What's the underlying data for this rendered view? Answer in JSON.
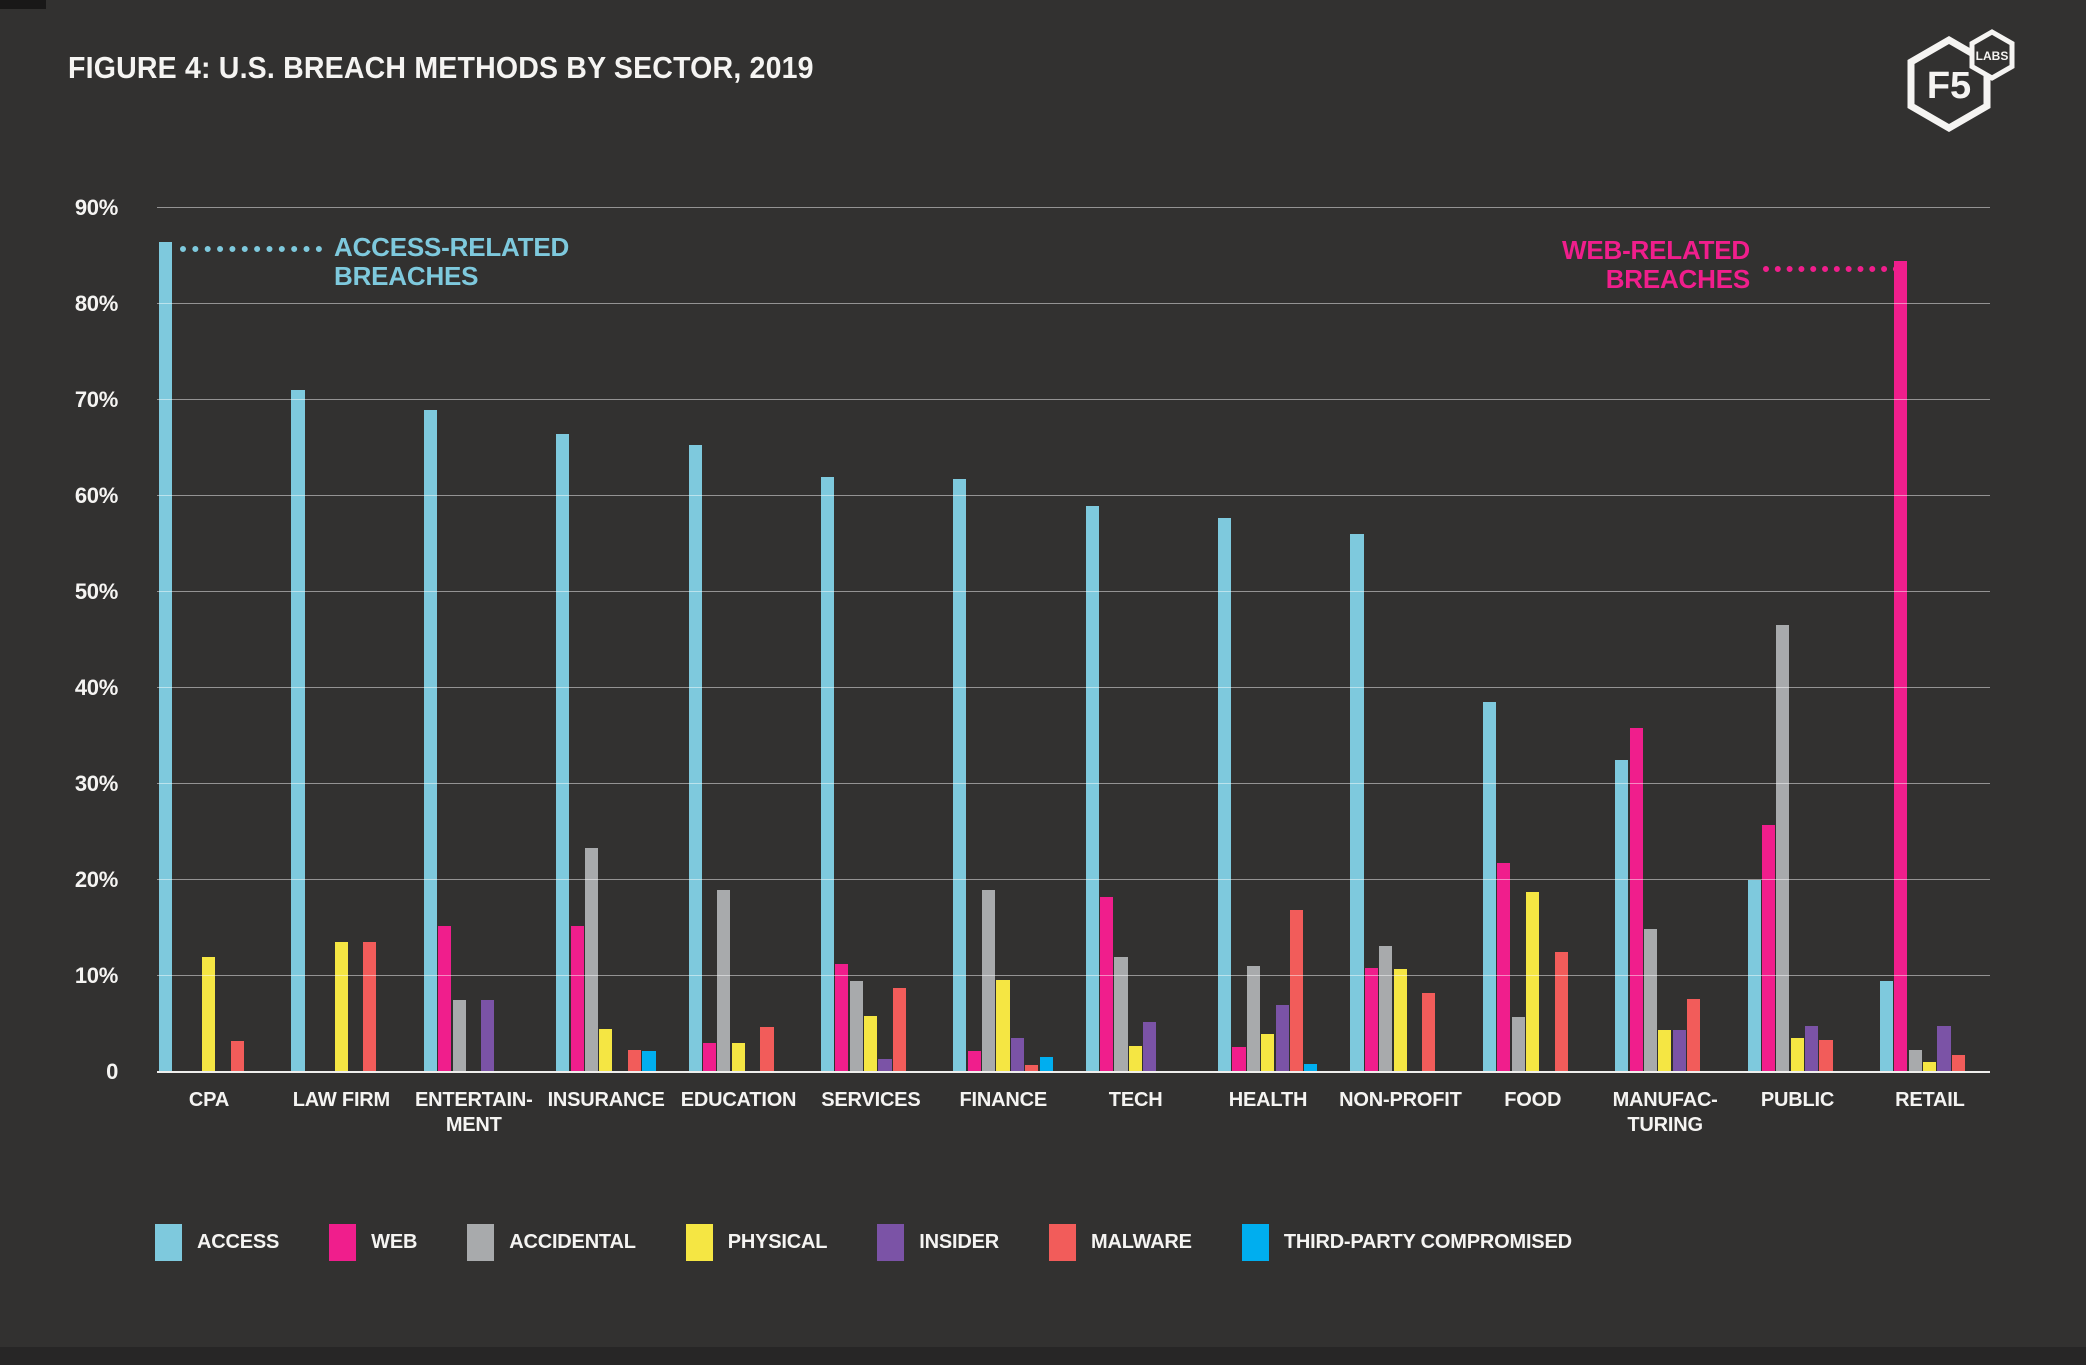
{
  "title": "FIGURE 4: U.S. BREACH METHODS BY SECTOR, 2019",
  "logo": {
    "primary": "F5",
    "labs": "LABS"
  },
  "colors": {
    "background": "#323130",
    "access": "#7ec9dd",
    "web": "#f01e8c",
    "accidental": "#a8aaac",
    "physical": "#f5e643",
    "insider": "#7b53a6",
    "malware": "#f25c5a",
    "third_party": "#00aeef",
    "gridline": "rgba(255,255,255,0.48)",
    "baseline": "#efeeec",
    "text": "#f5f4f2"
  },
  "chart_data": {
    "type": "bar",
    "title": "FIGURE 4: U.S. BREACH METHODS BY SECTOR, 2019",
    "xlabel": "",
    "ylabel": "",
    "ylim": [
      0,
      90
    ],
    "grid": true,
    "legend_position": "bottom",
    "y_ticks": [
      {
        "label": "90%",
        "value": 90
      },
      {
        "label": "80%",
        "value": 80
      },
      {
        "label": "70%",
        "value": 70
      },
      {
        "label": "60%",
        "value": 60
      },
      {
        "label": "50%",
        "value": 50
      },
      {
        "label": "40%",
        "value": 40
      },
      {
        "label": "30%",
        "value": 30
      },
      {
        "label": "20%",
        "value": 20
      },
      {
        "label": "10%",
        "value": 10
      },
      {
        "label": "0",
        "value": 0
      }
    ],
    "categories": [
      {
        "id": "cpa",
        "label": [
          "CPA"
        ]
      },
      {
        "id": "law-firm",
        "label": [
          "LAW FIRM"
        ]
      },
      {
        "id": "entertainment",
        "label": [
          "ENTERTAIN-",
          "MENT"
        ]
      },
      {
        "id": "insurance",
        "label": [
          "INSURANCE"
        ]
      },
      {
        "id": "education",
        "label": [
          "EDUCATION"
        ]
      },
      {
        "id": "services",
        "label": [
          "SERVICES"
        ]
      },
      {
        "id": "finance",
        "label": [
          "FINANCE"
        ]
      },
      {
        "id": "tech",
        "label": [
          "TECH"
        ]
      },
      {
        "id": "health",
        "label": [
          "HEALTH"
        ]
      },
      {
        "id": "non-profit",
        "label": [
          "NON-PROFIT"
        ]
      },
      {
        "id": "food",
        "label": [
          "FOOD"
        ]
      },
      {
        "id": "manufacturing",
        "label": [
          "MANUFAC-",
          "TURING"
        ]
      },
      {
        "id": "public",
        "label": [
          "PUBLIC"
        ]
      },
      {
        "id": "retail",
        "label": [
          "RETAIL"
        ]
      }
    ],
    "series": [
      {
        "key": "access",
        "name": "ACCESS",
        "color": "#7ec9dd",
        "values": [
          86.5,
          71,
          69,
          66.5,
          65.3,
          62,
          61.8,
          59,
          57.7,
          56,
          38.5,
          32.5,
          20,
          9.5
        ]
      },
      {
        "key": "web",
        "name": "WEB",
        "color": "#f01e8c",
        "values": [
          null,
          null,
          15.2,
          15.2,
          3,
          11.3,
          2.2,
          18.2,
          2.6,
          10.8,
          21.8,
          35.8,
          25.7,
          84.5
        ]
      },
      {
        "key": "accidental",
        "name": "ACCIDENTAL",
        "color": "#a8aaac",
        "values": [
          null,
          null,
          7.5,
          23.3,
          19,
          9.5,
          19,
          12,
          11,
          13.1,
          5.7,
          14.9,
          46.6,
          2.3
        ]
      },
      {
        "key": "physical",
        "name": "PHYSICAL",
        "color": "#f5e643",
        "values": [
          12,
          13.5,
          null,
          4.5,
          3,
          5.8,
          9.6,
          2.7,
          4,
          10.7,
          18.7,
          4.4,
          3.5,
          1
        ]
      },
      {
        "key": "insider",
        "name": "INSIDER",
        "color": "#7b53a6",
        "values": [
          null,
          null,
          7.5,
          null,
          null,
          1.4,
          3.5,
          5.2,
          7,
          null,
          null,
          4.4,
          4.8,
          4.8
        ]
      },
      {
        "key": "malware",
        "name": "MALWARE",
        "color": "#f25c5a",
        "values": [
          3.2,
          13.5,
          null,
          2.3,
          4.7,
          8.7,
          0.7,
          null,
          16.9,
          8.2,
          12.5,
          7.6,
          3.3,
          1.8
        ]
      },
      {
        "key": "third_party",
        "name": "THIRD-PARTY COMPROMISED",
        "color": "#00aeef",
        "values": [
          null,
          null,
          null,
          2.2,
          null,
          null,
          1.6,
          null,
          0.8,
          null,
          null,
          null,
          null,
          null
        ]
      }
    ],
    "annotations": [
      {
        "id": "access-related",
        "lines": [
          "ACCESS-RELATED",
          "BREACHES"
        ],
        "color": "#7ec9dd",
        "target_category": "cpa",
        "target_series": "access"
      },
      {
        "id": "web-related",
        "lines": [
          "WEB-RELATED",
          "BREACHES"
        ],
        "color": "#f01e8c",
        "target_category": "retail",
        "target_series": "web"
      }
    ]
  }
}
